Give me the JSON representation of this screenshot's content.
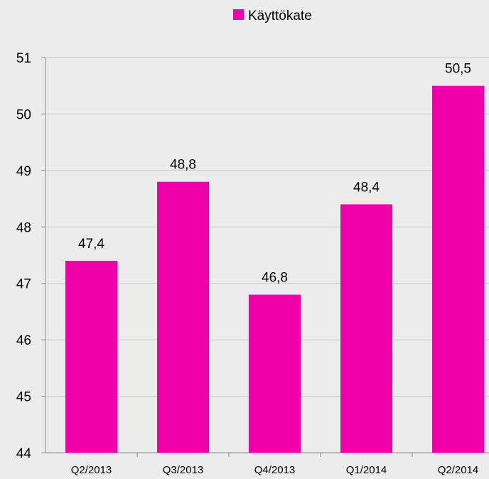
{
  "chart_data": {
    "type": "bar",
    "categories": [
      "Q2/2013",
      "Q3/2013",
      "Q4/2013",
      "Q1/2014",
      "Q2/2014"
    ],
    "series": [
      {
        "name": "Käyttökate",
        "values": [
          47.4,
          48.8,
          46.8,
          48.4,
          50.5
        ]
      }
    ],
    "data_labels": [
      "47,4",
      "48,8",
      "46,8",
      "48,4",
      "50,5"
    ],
    "yticks": [
      "44",
      "45",
      "46",
      "47",
      "48",
      "49",
      "50",
      "51"
    ],
    "ylim": [
      44,
      51
    ],
    "grid": true,
    "legend_position": "top",
    "colors": {
      "bar": "#f000a8",
      "grid": "#c8c8c8",
      "axis": "#888888",
      "background": "#ececec"
    }
  }
}
